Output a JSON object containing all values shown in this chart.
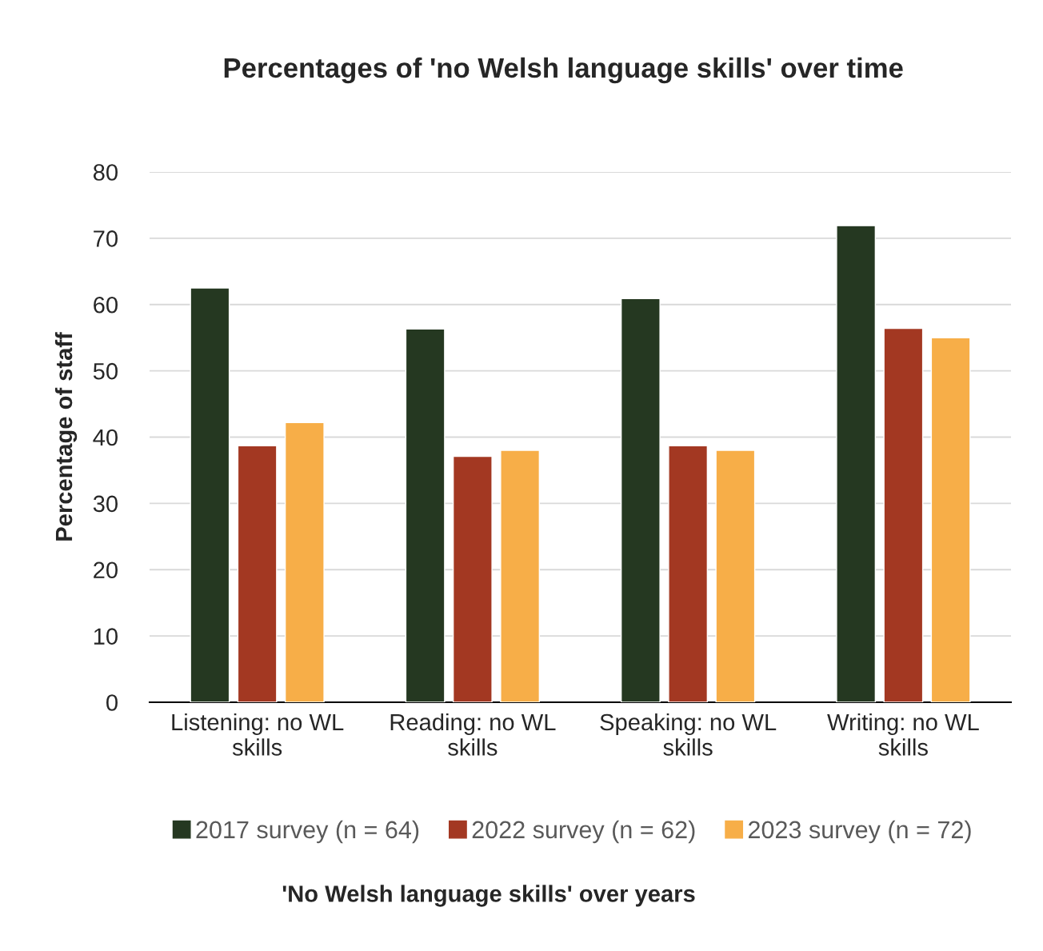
{
  "chart_data": {
    "type": "bar",
    "title": "Percentages of 'no Welsh language skills' over time",
    "annotations": [
      "'No Welsh language skills' over years"
    ],
    "ylabel": "Percentage of staff",
    "categories": [
      "Listening: no WL\nskills",
      "Reading: no WL\nskills",
      "Speaking: no WL\nskills",
      "Writing: no WL\nskills"
    ],
    "series": [
      {
        "name": "2017 survey (n = 64)",
        "color": "#253821",
        "values": [
          62.5,
          56.3,
          60.9,
          71.9
        ]
      },
      {
        "name": "2022 survey (n = 62)",
        "color": "#a33822",
        "values": [
          38.7,
          37.1,
          38.7,
          56.4
        ]
      },
      {
        "name": "2023 survey (n = 72)",
        "color": "#f7ae48",
        "values": [
          42.2,
          38.0,
          38.0,
          55.0
        ]
      }
    ],
    "ylim": [
      0,
      80
    ],
    "yticks": [
      0,
      10,
      20,
      30,
      40,
      50,
      60,
      70,
      80
    ],
    "grid": "y",
    "legend": "bottom"
  }
}
